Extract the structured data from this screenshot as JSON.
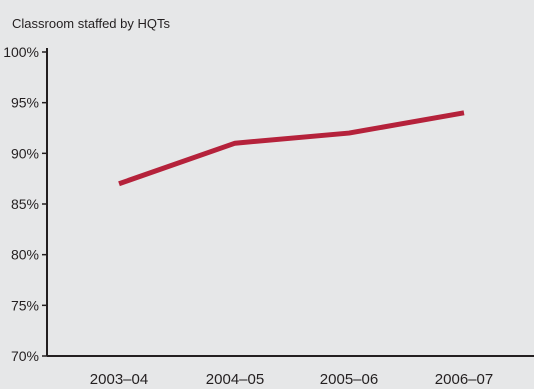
{
  "chart_data": {
    "type": "line",
    "title": "",
    "ylabel": "Classroom staffed by HQTs",
    "xlabel": "",
    "categories": [
      "2003–04",
      "2004–05",
      "2005–06",
      "2006–07"
    ],
    "series": [
      {
        "values": [
          87,
          91,
          92,
          94
        ],
        "color": "#b5223b"
      }
    ],
    "ylim": [
      70,
      100
    ],
    "yticks": [
      70,
      75,
      80,
      85,
      90,
      95,
      100
    ],
    "ytick_labels": [
      "70%",
      "75%",
      "80%",
      "85%",
      "90%",
      "95%",
      "100%"
    ],
    "grid": false,
    "legend": "none"
  },
  "colors": {
    "background": "#e6e7e8",
    "axis": "#231f20",
    "line": "#b5223b"
  }
}
